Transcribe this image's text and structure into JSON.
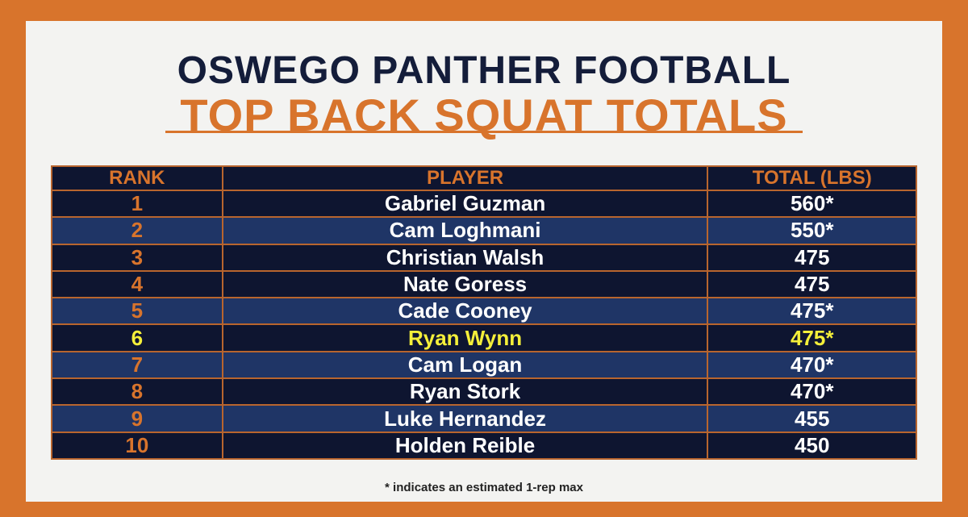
{
  "header": {
    "title": "OSWEGO PANTHER FOOTBALL",
    "subtitle": "TOP BACK SQUAT TOTALS"
  },
  "table": {
    "columns": [
      "RANK",
      "PLAYER",
      "TOTAL (LBS)"
    ],
    "rows": [
      [
        "1",
        "Gabriel Guzman",
        "560*"
      ],
      [
        "2",
        "Cam Loghmani",
        "550*"
      ],
      [
        "3",
        "Christian Walsh",
        "475"
      ],
      [
        "4",
        "Nate Goress",
        "475"
      ],
      [
        "5",
        "Cade Cooney",
        "475*"
      ],
      [
        "6",
        "Ryan Wynn",
        "475*"
      ],
      [
        "7",
        "Cam Logan",
        "470*"
      ],
      [
        "8",
        "Ryan Stork",
        "470*"
      ],
      [
        "9",
        "Luke Hernandez",
        "455"
      ],
      [
        "10",
        "Holden Reible",
        "450"
      ]
    ]
  },
  "footnote": "* indicates an estimated 1-rep max"
}
